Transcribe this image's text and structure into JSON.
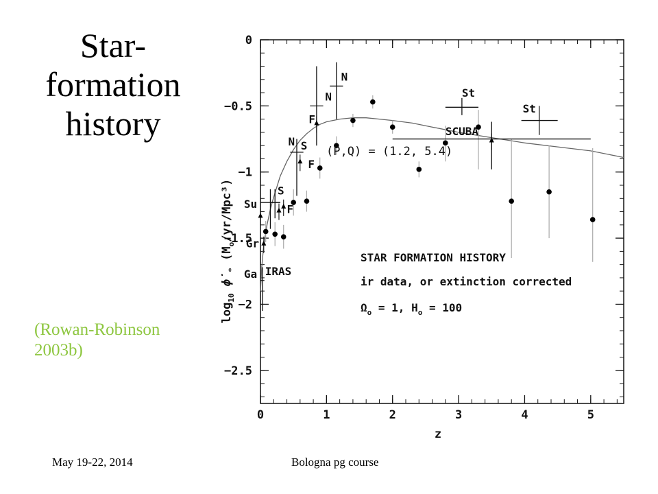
{
  "slide": {
    "title_lines": [
      "Star-",
      "formation",
      "history"
    ],
    "citation_lines": [
      "(Rowan-Robinson",
      "2003b)"
    ],
    "citation_color": "#8dc63f",
    "footer_date": "May 19-22, 2014",
    "footer_course": "Bologna pg course"
  },
  "chart_data": {
    "type": "scatter",
    "xlabel": "z",
    "ylabel_main": "log",
    "ylabel_sub": "10",
    "ylabel_rest": "ϕ̇",
    "ylabel_sub2": "*",
    "ylabel_units": "(M",
    "ylabel_units_sub": "o",
    "ylabel_units_rest": "/yr/Mpc³)",
    "xlim": [
      0,
      5.5
    ],
    "ylim": [
      -2.75,
      0
    ],
    "xticks": [
      0,
      1,
      2,
      3,
      4,
      5
    ],
    "xtick_labels": [
      "0",
      "1",
      "2",
      "3",
      "4",
      "5"
    ],
    "yticks": [
      0,
      -0.5,
      -1,
      -1.5,
      -2,
      -2.5
    ],
    "ytick_labels": [
      "0",
      "−0.5",
      "−1",
      "−1.5",
      "−2",
      "−2.5"
    ],
    "model_label": "(P,Q) = (1.2, 5.4)",
    "model_curve": {
      "x": [
        0.0,
        0.02,
        0.05,
        0.1,
        0.15,
        0.2,
        0.3,
        0.4,
        0.5,
        0.6,
        0.7,
        0.8,
        0.9,
        1.0,
        1.2,
        1.4,
        1.6,
        1.8,
        2.0,
        2.3,
        2.6,
        3.0,
        3.5,
        4.0,
        4.5,
        5.0,
        5.5
      ],
      "y": [
        -1.9,
        -1.72,
        -1.55,
        -1.4,
        -1.28,
        -1.19,
        -1.03,
        -0.92,
        -0.83,
        -0.76,
        -0.71,
        -0.67,
        -0.64,
        -0.62,
        -0.6,
        -0.59,
        -0.59,
        -0.6,
        -0.61,
        -0.63,
        -0.66,
        -0.7,
        -0.74,
        -0.78,
        -0.81,
        -0.84,
        -0.89
      ]
    },
    "legend_box": {
      "lines": [
        "STAR FORMATION HISTORY",
        "ir data, or extinction corrected"
      ],
      "omega_symbol": "Ω",
      "omega_sub": "o",
      "omega_text": "= 1,",
      "hubble_symbol": "H",
      "hubble_sub": "o",
      "hubble_text": "= 100"
    },
    "circles": [
      {
        "x": 0.08,
        "y": -1.45,
        "ylo": -1.53,
        "yhi": -1.37
      },
      {
        "x": 0.22,
        "y": -1.47,
        "ylo": -1.56,
        "yhi": -1.38
      },
      {
        "x": 0.35,
        "y": -1.49,
        "ylo": -1.58,
        "yhi": -1.4
      },
      {
        "x": 0.5,
        "y": -1.23,
        "ylo": -1.33,
        "yhi": -1.13
      },
      {
        "x": 0.7,
        "y": -1.22,
        "ylo": -1.3,
        "yhi": -1.14
      },
      {
        "x": 0.9,
        "y": -0.97,
        "ylo": -1.05,
        "yhi": -0.89
      },
      {
        "x": 1.15,
        "y": -0.8,
        "ylo": -0.87,
        "yhi": -0.73
      },
      {
        "x": 1.4,
        "y": -0.61,
        "ylo": -0.66,
        "yhi": -0.56
      },
      {
        "x": 1.7,
        "y": -0.47,
        "ylo": -0.52,
        "yhi": -0.42
      },
      {
        "x": 2.0,
        "y": -0.66,
        "ylo": -0.71,
        "yhi": -0.61
      },
      {
        "x": 2.4,
        "y": -0.98,
        "ylo": -1.04,
        "yhi": -0.92
      },
      {
        "x": 2.8,
        "y": -0.78,
        "ylo": -0.92,
        "yhi": -0.65
      },
      {
        "x": 3.3,
        "y": -0.66,
        "ylo": -0.98,
        "yhi": -0.53
      },
      {
        "x": 3.8,
        "y": -1.22,
        "ylo": -1.65,
        "yhi": -0.75
      },
      {
        "x": 4.37,
        "y": -1.15,
        "ylo": -1.5,
        "yhi": -0.8
      },
      {
        "x": 5.03,
        "y": -1.36,
        "ylo": -1.68,
        "yhi": -0.82
      }
    ],
    "triangles": [
      {
        "x": 0.0,
        "y": -1.33
      },
      {
        "x": 0.05,
        "y": -1.54
      },
      {
        "x": 0.28,
        "y": -1.29
      },
      {
        "x": 0.35,
        "y": -1.26
      },
      {
        "x": 0.6,
        "y": -0.92
      },
      {
        "x": 0.85,
        "y": -0.63
      },
      {
        "x": 3.5,
        "y": -0.76
      }
    ],
    "crosses": [
      {
        "x": 0.03,
        "y": -1.82,
        "xlo": 0.0,
        "xhi": 0.06,
        "ylo": -2.05,
        "yhi": -1.72
      },
      {
        "x": 0.15,
        "y": -1.23,
        "xlo": 0.0,
        "xhi": 0.3,
        "ylo": -1.43,
        "yhi": -1.13
      },
      {
        "x": 0.22,
        "y": -1.23,
        "xlo": 0.15,
        "xhi": 0.3,
        "ylo": -1.35,
        "yhi": -1.13
      },
      {
        "x": 0.55,
        "y": -0.85,
        "xlo": 0.45,
        "xhi": 0.65,
        "ylo": -1.18,
        "yhi": -0.75
      },
      {
        "x": 0.85,
        "y": -0.5,
        "xlo": 0.75,
        "xhi": 0.95,
        "ylo": -0.8,
        "yhi": -0.2
      },
      {
        "x": 1.15,
        "y": -0.35,
        "xlo": 1.05,
        "xhi": 1.25,
        "ylo": -0.6,
        "yhi": -0.17
      },
      {
        "x": 3.05,
        "y": -0.51,
        "xlo": 2.8,
        "xhi": 3.3,
        "ylo": -0.57,
        "yhi": -0.44
      },
      {
        "x": 4.22,
        "y": -0.61,
        "xlo": 3.95,
        "xhi": 4.5,
        "ylo": -0.72,
        "yhi": -0.5
      },
      {
        "x": 3.5,
        "y": -0.75,
        "xlo": 2.0,
        "xhi": 5.0,
        "ylo": -0.98,
        "yhi": -0.62
      }
    ],
    "annotations": [
      {
        "text": "N",
        "x": 1.22,
        "y": -0.31
      },
      {
        "text": "N",
        "x": 0.98,
        "y": -0.46
      },
      {
        "text": "F",
        "x": 0.73,
        "y": -0.63
      },
      {
        "text": "St",
        "x": 3.05,
        "y": -0.43
      },
      {
        "text": "St",
        "x": 3.97,
        "y": -0.55
      },
      {
        "text": "SCUBA",
        "x": 2.8,
        "y": -0.72
      },
      {
        "text": "N",
        "x": 0.42,
        "y": -0.8
      },
      {
        "text": "S",
        "x": 0.61,
        "y": -0.83
      },
      {
        "text": "F",
        "x": 0.72,
        "y": -0.97
      },
      {
        "text": "S",
        "x": 0.26,
        "y": -1.17
      },
      {
        "text": "F",
        "x": 0.4,
        "y": -1.31
      },
      {
        "text": "Su",
        "x": -0.25,
        "y": -1.27
      },
      {
        "text": "Gr",
        "x": -0.22,
        "y": -1.57
      },
      {
        "text": "Ga",
        "x": -0.25,
        "y": -1.8
      },
      {
        "text": "IRAS",
        "x": 0.07,
        "y": -1.78
      }
    ]
  }
}
